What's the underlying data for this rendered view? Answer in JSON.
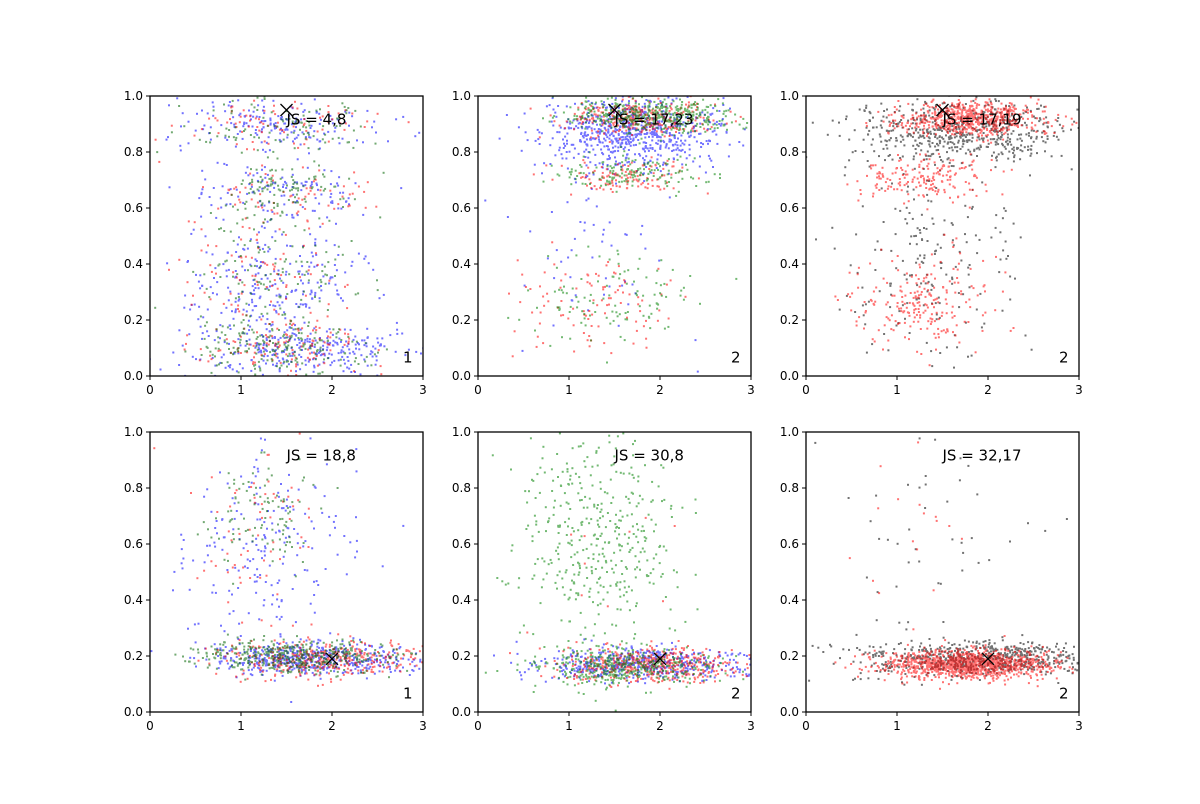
{
  "chart_data": {
    "type": "scatter",
    "xlim": [
      0,
      3
    ],
    "ylim": [
      0,
      1
    ],
    "xticks": [
      "0",
      "1",
      "2",
      "3"
    ],
    "yticks": [
      "0.0",
      "0.2",
      "0.4",
      "0.6",
      "0.8",
      "1.0"
    ],
    "grid": false,
    "panels": [
      {
        "label": "JS = 4,8",
        "corner": "1",
        "marker": [
          1.5,
          0.95
        ],
        "series": [
          {
            "color": "#0000ff",
            "clusters": [
              [
                1.4,
                0.9,
                0.55,
                0.05,
                180
              ],
              [
                1.4,
                0.65,
                0.5,
                0.05,
                120
              ],
              [
                1.3,
                0.4,
                0.5,
                0.07,
                120
              ],
              [
                1.3,
                0.28,
                0.5,
                0.05,
                100
              ],
              [
                1.6,
                0.1,
                0.6,
                0.05,
                300
              ]
            ]
          },
          {
            "color": "#ff0000",
            "clusters": [
              [
                1.4,
                0.9,
                0.5,
                0.05,
                80
              ],
              [
                1.5,
                0.65,
                0.5,
                0.05,
                70
              ],
              [
                1.3,
                0.35,
                0.5,
                0.1,
                90
              ],
              [
                1.5,
                0.1,
                0.5,
                0.05,
                120
              ]
            ]
          },
          {
            "color": "#006400",
            "clusters": [
              [
                1.4,
                0.9,
                0.5,
                0.05,
                100
              ],
              [
                1.5,
                0.67,
                0.4,
                0.05,
                110
              ],
              [
                1.3,
                0.38,
                0.45,
                0.1,
                120
              ],
              [
                1.4,
                0.1,
                0.45,
                0.05,
                200
              ]
            ]
          }
        ]
      },
      {
        "label": "JS = 17,23",
        "corner": "2",
        "marker": [
          1.5,
          0.95
        ],
        "series": [
          {
            "color": "#0000ff",
            "clusters": [
              [
                1.7,
                0.87,
                0.5,
                0.06,
                700
              ],
              [
                1.3,
                0.5,
                0.5,
                0.2,
                60
              ]
            ]
          },
          {
            "color": "#ff0000",
            "clusters": [
              [
                1.8,
                0.92,
                0.4,
                0.03,
                300
              ],
              [
                1.6,
                0.71,
                0.35,
                0.03,
                120
              ],
              [
                1.2,
                0.26,
                0.4,
                0.08,
                100
              ]
            ]
          },
          {
            "color": "#008000",
            "clusters": [
              [
                1.9,
                0.93,
                0.45,
                0.03,
                450
              ],
              [
                1.7,
                0.72,
                0.4,
                0.03,
                150
              ],
              [
                1.4,
                0.27,
                0.45,
                0.08,
                110
              ]
            ]
          }
        ]
      },
      {
        "label": "JS = 17,19",
        "corner": "2",
        "marker": [
          1.5,
          0.95
        ],
        "series": [
          {
            "color": "#000000",
            "clusters": [
              [
                1.7,
                0.87,
                0.6,
                0.06,
                600
              ],
              [
                1.3,
                0.4,
                0.5,
                0.2,
                200
              ]
            ]
          },
          {
            "color": "#ff0000",
            "clusters": [
              [
                1.8,
                0.92,
                0.4,
                0.03,
                650
              ],
              [
                1.3,
                0.71,
                0.35,
                0.04,
                180
              ],
              [
                1.3,
                0.26,
                0.35,
                0.08,
                220
              ]
            ]
          }
        ]
      },
      {
        "label": "JS = 18,8",
        "corner": "1",
        "marker": [
          2,
          0.19
        ],
        "series": [
          {
            "color": "#0000ff",
            "clusters": [
              [
                1.8,
                0.19,
                0.55,
                0.03,
                500
              ],
              [
                1.3,
                0.6,
                0.5,
                0.18,
                200
              ]
            ]
          },
          {
            "color": "#ff0000",
            "clusters": [
              [
                1.9,
                0.19,
                0.55,
                0.03,
                350
              ],
              [
                1.1,
                0.6,
                0.4,
                0.2,
                70
              ]
            ]
          },
          {
            "color": "#006400",
            "clusters": [
              [
                1.6,
                0.2,
                0.5,
                0.03,
                450
              ],
              [
                1.2,
                0.7,
                0.3,
                0.1,
                100
              ]
            ]
          }
        ]
      },
      {
        "label": "JS = 30,8",
        "corner": "2",
        "marker": [
          2,
          0.19
        ],
        "series": [
          {
            "color": "#0000ff",
            "clusters": [
              [
                1.8,
                0.17,
                0.55,
                0.03,
                500
              ]
            ]
          },
          {
            "color": "#ff0000",
            "clusters": [
              [
                1.9,
                0.17,
                0.5,
                0.03,
                450
              ],
              [
                1.5,
                0.5,
                0.5,
                0.2,
                10
              ]
            ]
          },
          {
            "color": "#008000",
            "clusters": [
              [
                1.6,
                0.16,
                0.5,
                0.03,
                400
              ],
              [
                1.3,
                0.6,
                0.45,
                0.22,
                450
              ]
            ]
          }
        ]
      },
      {
        "label": "JS = 32,17",
        "corner": "2",
        "marker": [
          2,
          0.19
        ],
        "series": [
          {
            "color": "#000000",
            "clusters": [
              [
                1.9,
                0.19,
                0.65,
                0.03,
                700
              ],
              [
                1.4,
                0.55,
                0.6,
                0.22,
                50
              ]
            ]
          },
          {
            "color": "#ff0000",
            "clusters": [
              [
                1.8,
                0.17,
                0.45,
                0.025,
                1200
              ],
              [
                1.2,
                0.7,
                0.3,
                0.2,
                20
              ]
            ]
          }
        ]
      }
    ]
  }
}
